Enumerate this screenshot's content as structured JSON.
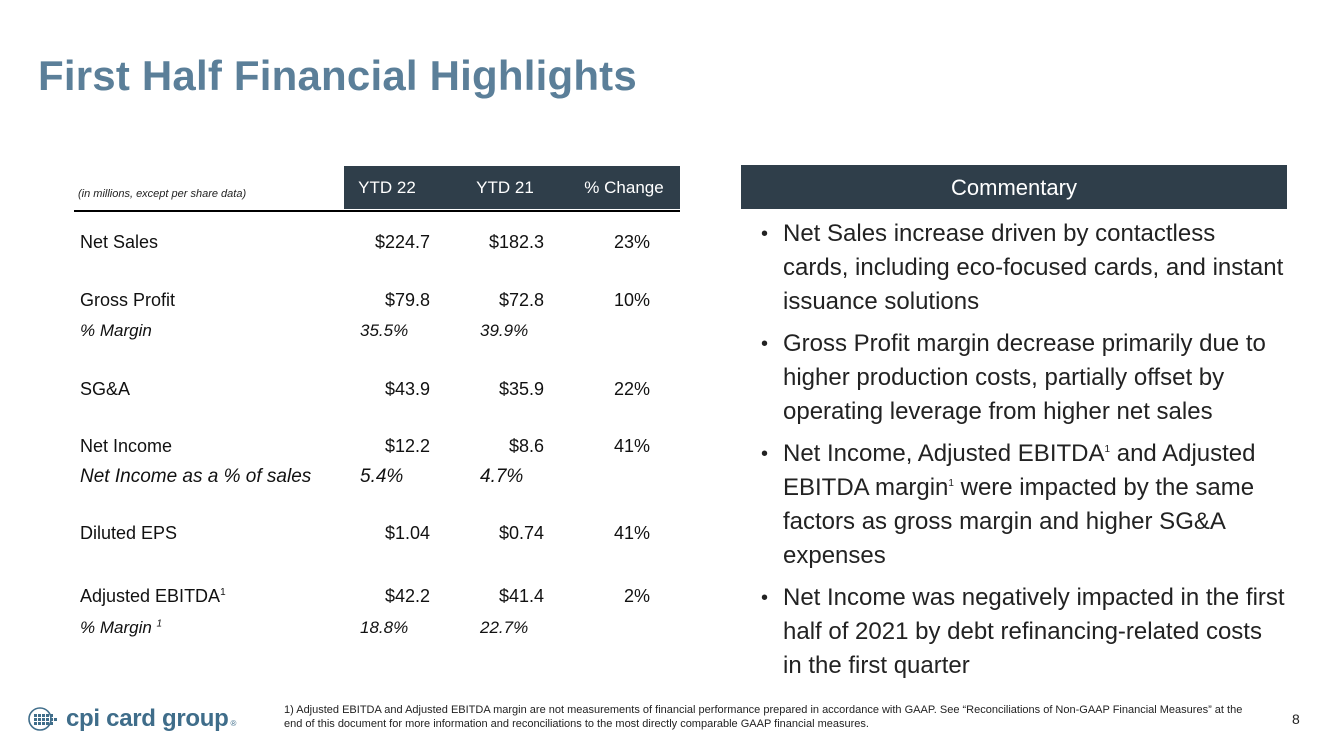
{
  "title": "First Half Financial Highlights",
  "table": {
    "units_note": "(in millions, except per share data)",
    "headers": [
      "YTD 22",
      "YTD 21",
      "% Change"
    ],
    "rows": [
      {
        "label": "Net Sales",
        "ytd22": "$224.7",
        "ytd21": "$182.3",
        "change": "23%"
      },
      {
        "label": "Gross Profit",
        "ytd22": "$79.8",
        "ytd21": "$72.8",
        "change": "10%"
      },
      {
        "label": "% Margin",
        "ytd22": "35.5%",
        "ytd21": "39.9%",
        "change": ""
      },
      {
        "label": "SG&A",
        "ytd22": "$43.9",
        "ytd21": "$35.9",
        "change": "22%"
      },
      {
        "label": "Net Income",
        "ytd22": "$12.2",
        "ytd21": "$8.6",
        "change": "41%"
      },
      {
        "label": "Net Income as a % of sales",
        "ytd22": "5.4%",
        "ytd21": "4.7%",
        "change": ""
      },
      {
        "label": "Diluted EPS",
        "ytd22": "$1.04",
        "ytd21": "$0.74",
        "change": "41%"
      },
      {
        "label": "Adjusted EBITDA",
        "sup": "1",
        "ytd22": "$42.2",
        "ytd21": "$41.4",
        "change": "2%"
      },
      {
        "label": "% Margin ",
        "sup": "1",
        "ytd22": "18.8%",
        "ytd21": "22.7%",
        "change": ""
      }
    ]
  },
  "commentary": {
    "heading": "Commentary",
    "bullet_char": "•",
    "bullets": [
      {
        "text": "Net Sales increase driven by contactless cards, including eco-focused cards, and instant issuance solutions"
      },
      {
        "text": "Gross Profit margin decrease primarily due to higher production costs, partially offset by operating leverage from higher net sales"
      },
      {
        "parts": [
          "Net Income, Adjusted EBITDA",
          "1",
          " and Adjusted EBITDA margin",
          "1",
          " were impacted by the same factors as gross margin and higher SG&A expenses"
        ]
      },
      {
        "text": "Net Income was negatively impacted in the first half of 2021 by debt refinancing-related costs in the first quarter"
      }
    ]
  },
  "footer": {
    "logo_text": "cpi card group",
    "logo_reg": "®",
    "footnote": "1) Adjusted EBITDA and Adjusted EBITDA margin are not measurements of financial performance prepared in accordance with GAAP. See “Reconciliations of Non-GAAP Financial Measures” at the end of this document for more information and reconciliations to the most directly comparable GAAP financial measures.",
    "page_number": "8"
  },
  "colors": {
    "title": "#5b7f99",
    "header_bar": "#2f3e4a",
    "logo": "#3f6d8a"
  }
}
